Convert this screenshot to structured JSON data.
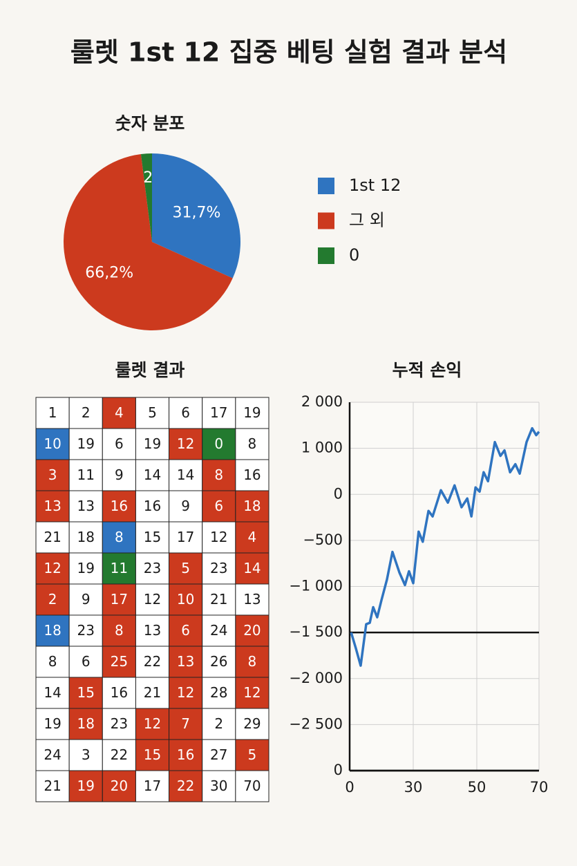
{
  "title": "룰렛 1st 12 집중 베팅 실험 결과 분석",
  "chart_data": [
    {
      "type": "pie",
      "title": "숫자 분포",
      "categories": [
        "1st 12",
        "그 외",
        "0"
      ],
      "values": [
        31.7,
        66.2,
        2
      ],
      "value_labels": [
        "31,7%",
        "66,2%",
        "2"
      ],
      "colors": [
        "#2f74c0",
        "#cc3a1e",
        "#237a2f"
      ]
    },
    {
      "type": "line",
      "title": "누적 손익",
      "x": [
        0.7,
        2.9,
        5.2,
        7.8,
        9.5,
        11.1,
        13.0,
        15.0,
        17.6,
        20.2,
        23.5,
        26.1,
        28.0,
        30,
        31.7,
        33.0,
        34.8,
        36.1,
        38.7,
        40.9,
        43.0,
        45.2,
        47.0,
        48.3,
        49.6,
        50.9,
        52.2,
        53.6,
        55.8,
        57.6,
        58.9,
        60.7,
        62.4,
        63.8,
        66.0,
        67.8,
        69.1,
        70
      ],
      "values": [
        -1500,
        -1670,
        -1860,
        -1410,
        -1395,
        -1225,
        -1335,
        -1150,
        -925,
        -625,
        -850,
        -985,
        -835,
        -965,
        -405,
        -515,
        -180,
        -240,
        90,
        -90,
        195,
        -140,
        -45,
        -240,
        150,
        60,
        480,
        285,
        1135,
        835,
        955,
        480,
        655,
        450,
        1135,
        1435,
        1285,
        1360
      ],
      "color": "#2f74c0",
      "xlim": [
        0,
        70
      ],
      "xticks": [
        0,
        30,
        50,
        70
      ],
      "yticks": [
        {
          "value": 2000,
          "label": "2 000"
        },
        {
          "value": 1000,
          "label": "1 000"
        },
        0,
        {
          "value": -500,
          "label": "−500"
        },
        {
          "value": -1000,
          "label": "−1 000"
        },
        {
          "value": -1500,
          "label": "−1 500"
        },
        {
          "value": -2000,
          "label": "−2 000"
        },
        {
          "value": -2500,
          "label": "−2 500"
        },
        0
      ],
      "hline": -1500,
      "grid": true
    }
  ],
  "table": {
    "title": "룰렛 결과",
    "palette": {
      "w": "#ffffff",
      "r": "#cc3a1e",
      "b": "#2f74c0",
      "g": "#237a2f"
    },
    "rows": [
      [
        1,
        2,
        4,
        5,
        6,
        17,
        19
      ],
      [
        10,
        19,
        6,
        19,
        12,
        0,
        8
      ],
      [
        3,
        11,
        9,
        14,
        14,
        8,
        16
      ],
      [
        13,
        13,
        16,
        16,
        9,
        6,
        18
      ],
      [
        21,
        18,
        8,
        15,
        17,
        12,
        4
      ],
      [
        12,
        19,
        11,
        23,
        5,
        23,
        14
      ],
      [
        2,
        9,
        17,
        12,
        10,
        21,
        13
      ],
      [
        18,
        23,
        8,
        13,
        6,
        24,
        20
      ],
      [
        8,
        6,
        25,
        22,
        13,
        26,
        8
      ],
      [
        14,
        15,
        16,
        21,
        12,
        28,
        12
      ],
      [
        19,
        18,
        23,
        12,
        7,
        2,
        29
      ],
      [
        24,
        3,
        22,
        15,
        16,
        27,
        5
      ],
      [
        21,
        19,
        20,
        17,
        22,
        30,
        70
      ]
    ],
    "colors": [
      "wwrwwww",
      "bwwwrgw",
      "rwwwwrw",
      "rwrwwrr",
      "wwbwwwr",
      "rwgwrwr",
      "rwrwrww",
      "bwrwrwr",
      "wwrwrwr",
      "wrwwrwr",
      "wrwrrww",
      "wwwrrwr",
      "wrrwrww"
    ]
  }
}
